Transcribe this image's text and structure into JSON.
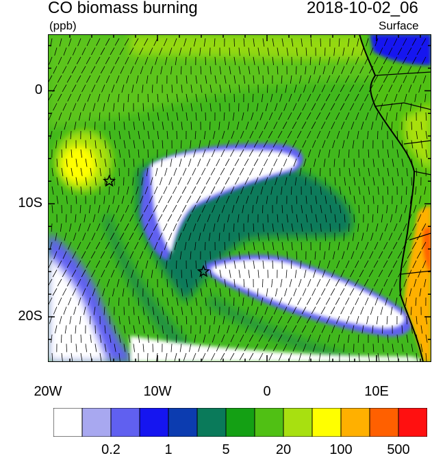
{
  "header": {
    "title": "CO biomass burning",
    "datetime": "2018-10-02_06",
    "units": "(ppb)",
    "level": "Surface"
  },
  "map": {
    "lon_range": [
      -20,
      15
    ],
    "lat_range": [
      -24,
      5
    ],
    "lat_ticks": [
      {
        "label": "0",
        "value": 0
      },
      {
        "label": "10S",
        "value": -10
      },
      {
        "label": "20S",
        "value": -20
      }
    ],
    "lon_ticks": [
      {
        "label": "20W",
        "value": -20
      },
      {
        "label": "10W",
        "value": -10
      },
      {
        "label": "0",
        "value": 0
      },
      {
        "label": "10E",
        "value": 10
      }
    ],
    "markers": [
      {
        "type": "star",
        "lon": -14.4,
        "lat": -8.0
      },
      {
        "type": "star",
        "lon": -5.8,
        "lat": -16.0
      }
    ],
    "wind_vectors": "shown",
    "colors": {
      "ocean_base": "#41b81d",
      "land_outline": "#000000"
    }
  },
  "colorbar": {
    "colors": [
      "#ffffff",
      "#a8a8f0",
      "#6060f0",
      "#1515f0",
      "#0c3cb0",
      "#0a7a5a",
      "#14a014",
      "#50c014",
      "#a8e010",
      "#ffff00",
      "#ffb000",
      "#ff6000",
      "#ff1010"
    ],
    "labels": [
      {
        "text": "0.2",
        "boundary": 2
      },
      {
        "text": "1",
        "boundary": 4
      },
      {
        "text": "5",
        "boundary": 6
      },
      {
        "text": "20",
        "boundary": 8
      },
      {
        "text": "100",
        "boundary": 10
      },
      {
        "text": "500",
        "boundary": 12
      }
    ]
  }
}
